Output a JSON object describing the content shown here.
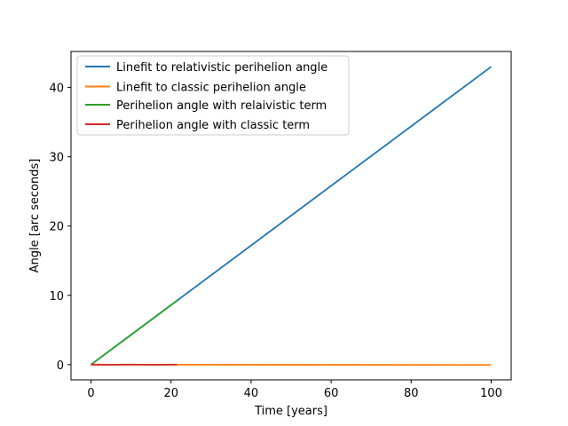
{
  "chart_data": {
    "type": "line",
    "xlabel": "Time [years]",
    "ylabel": "Angle [arc seconds]",
    "xlim": [
      -5,
      105
    ],
    "ylim": [
      -2.2,
      45.2
    ],
    "xticks": [
      0,
      20,
      40,
      60,
      80,
      100
    ],
    "yticks": [
      0,
      10,
      20,
      30,
      40
    ],
    "grid": false,
    "legend_position": "upper-left",
    "series": [
      {
        "name": "Linefit to relativistic perihelion angle",
        "color": "#1f77b4",
        "x": [
          0,
          100
        ],
        "y": [
          0,
          43.0
        ]
      },
      {
        "name": "Linefit to classic perihelion angle",
        "color": "#ff7f0e",
        "x": [
          0,
          100
        ],
        "y": [
          0,
          -0.05
        ]
      },
      {
        "name": "Perihelion angle with relaivistic term",
        "color": "#2ca02c",
        "x": [
          0,
          5,
          10,
          15,
          21.5
        ],
        "y": [
          0,
          2.15,
          4.3,
          6.45,
          9.25
        ]
      },
      {
        "name": "Perihelion angle with classic term",
        "color": "#d62728",
        "x": [
          0,
          5,
          10,
          15,
          21.5
        ],
        "y": [
          0,
          -0.02,
          0.01,
          -0.02,
          0.0
        ]
      }
    ]
  }
}
